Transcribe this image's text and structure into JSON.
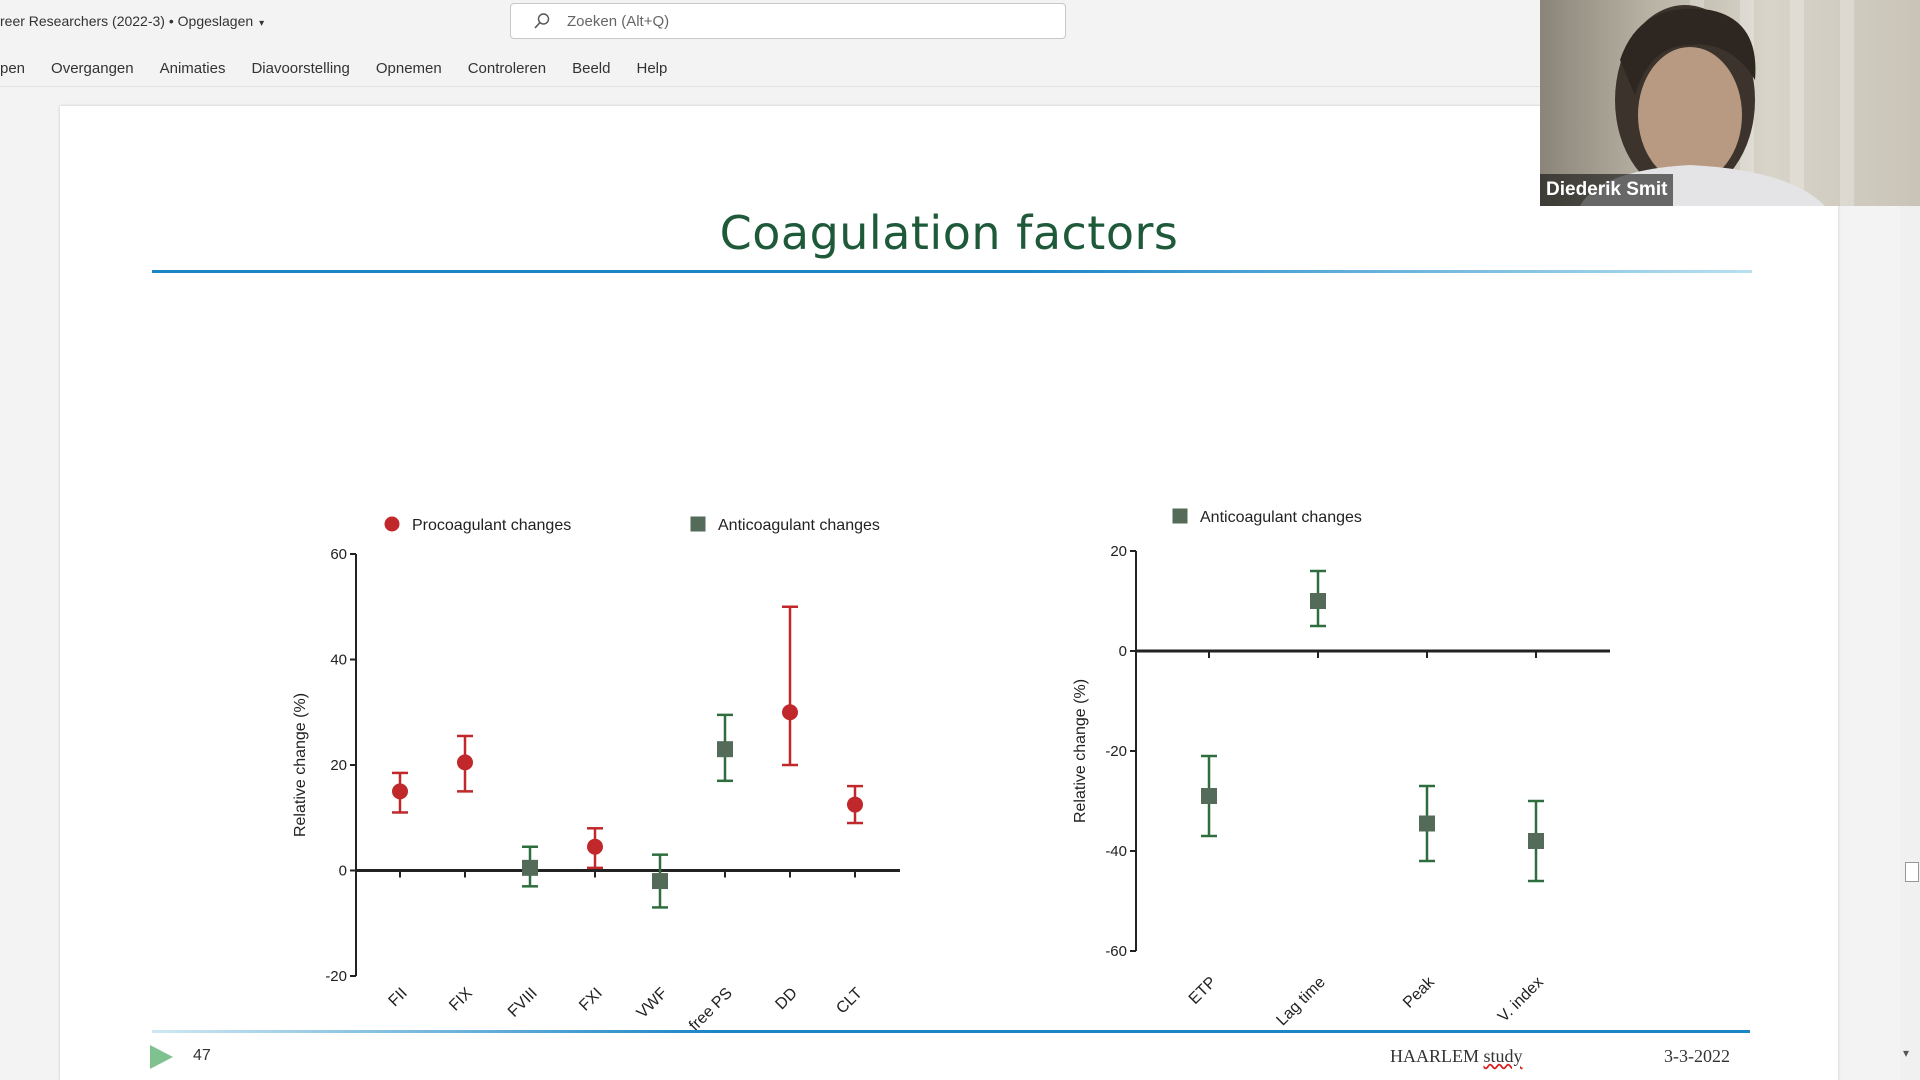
{
  "app": {
    "doc_title": "reer Researchers (2022-3) • Opgeslagen",
    "search_placeholder": "Zoeken (Alt+Q)"
  },
  "ribbon": {
    "tabs": [
      "pen",
      "Overgangen",
      "Animaties",
      "Diavoorstelling",
      "Opnemen",
      "Controleren",
      "Beeld",
      "Help"
    ]
  },
  "slide": {
    "title": "Coagulation factors",
    "number": "47",
    "footer_study_word1": "HAARLEM",
    "footer_study_word2": "study",
    "footer_date": "3-3-2022"
  },
  "video": {
    "participant_name": "Diederik Smit"
  },
  "colors": {
    "procoagulant": "#c0282b",
    "anticoagulant": "#2e6e3e",
    "marker_anticoagulant": "#556b5a",
    "title_green": "#1e5a3a",
    "rule_blue": "#1b86c6"
  },
  "chart_data": [
    {
      "type": "scatter",
      "style": "mean with error bars",
      "ylabel": "Relative change (%)",
      "xlabel": "",
      "ylim": [
        -20,
        60
      ],
      "yticks": [
        -20,
        0,
        20,
        40,
        60
      ],
      "categories": [
        "FII",
        "FIX",
        "FVIII",
        "FXI",
        "VWF",
        "free PS",
        "DD",
        "CLT"
      ],
      "legend": [
        "Procoagulant changes",
        "Anticoagulant changes"
      ],
      "legend_position": "top",
      "points": [
        {
          "x": "FII",
          "y": 15,
          "low": 11,
          "high": 18.5,
          "group": "Procoagulant changes"
        },
        {
          "x": "FIX",
          "y": 20.5,
          "low": 15,
          "high": 25.5,
          "group": "Procoagulant changes"
        },
        {
          "x": "FVIII",
          "y": 0.5,
          "low": -3,
          "high": 4.5,
          "group": "Anticoagulant changes"
        },
        {
          "x": "FXI",
          "y": 4.5,
          "low": 0.5,
          "high": 8,
          "group": "Procoagulant changes"
        },
        {
          "x": "VWF",
          "y": -2,
          "low": -7,
          "high": 3,
          "group": "Anticoagulant changes"
        },
        {
          "x": "free PS",
          "y": 23,
          "low": 17,
          "high": 29.5,
          "group": "Anticoagulant changes"
        },
        {
          "x": "DD",
          "y": 30,
          "low": 20,
          "high": 50,
          "group": "Procoagulant changes"
        },
        {
          "x": "CLT",
          "y": 12.5,
          "low": 9,
          "high": 16,
          "group": "Procoagulant changes"
        }
      ]
    },
    {
      "type": "scatter",
      "style": "mean with error bars",
      "ylabel": "Relative change (%)",
      "xlabel": "",
      "ylim": [
        -60,
        20
      ],
      "yticks": [
        -60,
        -40,
        -20,
        0,
        20
      ],
      "categories": [
        "ETP",
        "Lag time",
        "Peak",
        "V. index"
      ],
      "legend": [
        "Anticoagulant changes"
      ],
      "legend_position": "top",
      "points": [
        {
          "x": "ETP",
          "y": -29,
          "low": -37,
          "high": -21,
          "group": "Anticoagulant changes"
        },
        {
          "x": "Lag time",
          "y": 10,
          "low": 5,
          "high": 16,
          "group": "Anticoagulant changes"
        },
        {
          "x": "Peak",
          "y": -34.5,
          "low": -42,
          "high": -27,
          "group": "Anticoagulant changes"
        },
        {
          "x": "V. index",
          "y": -38,
          "low": -46,
          "high": -30,
          "group": "Anticoagulant changes"
        }
      ]
    }
  ]
}
